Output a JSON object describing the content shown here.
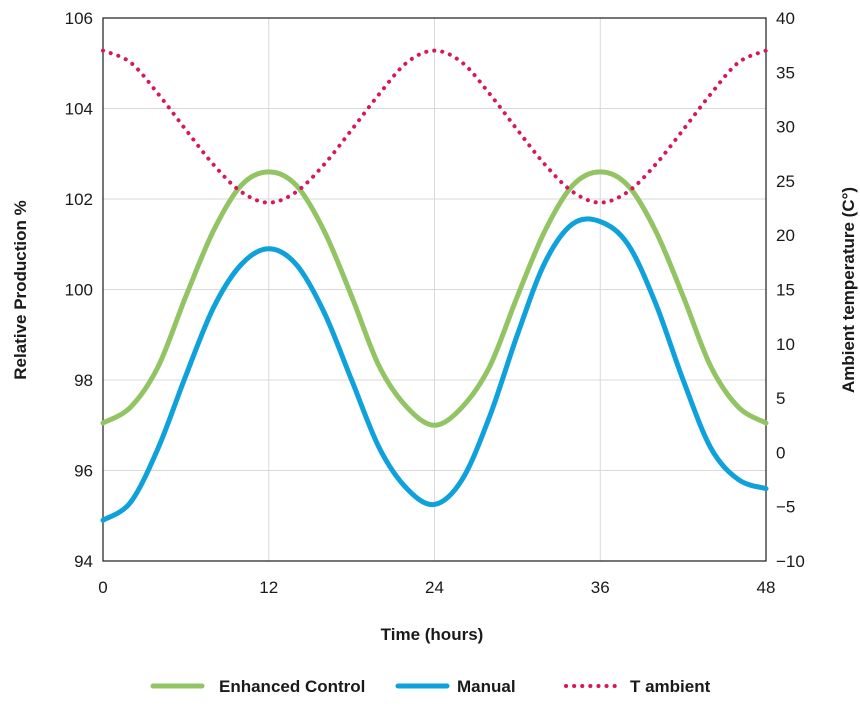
{
  "chart_data": {
    "type": "line",
    "xlabel": "Time (hours)",
    "ylabel": "Relative Production %",
    "y2label": "Ambient temperature (C°)",
    "xlim": [
      0,
      48
    ],
    "ylim": [
      94,
      106
    ],
    "y2lim": [
      -10,
      40
    ],
    "x_ticks": [
      "0",
      "12",
      "24",
      "36",
      "48"
    ],
    "y_ticks": [
      "94",
      "96",
      "98",
      "100",
      "102",
      "104",
      "106"
    ],
    "y2_ticks": [
      "−10",
      "−5",
      "0",
      "5",
      "10",
      "15",
      "20",
      "25",
      "30",
      "35",
      "40"
    ],
    "grid": true,
    "legend_position": "bottom",
    "x": [
      0,
      2,
      4,
      6,
      8,
      10,
      12,
      14,
      16,
      18,
      20,
      22,
      24,
      26,
      28,
      30,
      32,
      34,
      36,
      38,
      40,
      42,
      44,
      46,
      48
    ],
    "series": [
      {
        "name": "Enhanced Control",
        "axis": "left",
        "color": "#92c464",
        "style": "solid",
        "values": [
          97.05,
          97.4,
          98.3,
          99.85,
          101.3,
          102.3,
          102.6,
          102.3,
          101.3,
          99.85,
          98.3,
          97.4,
          97.0,
          97.4,
          98.3,
          99.85,
          101.3,
          102.3,
          102.6,
          102.3,
          101.3,
          99.85,
          98.3,
          97.4,
          97.05
        ]
      },
      {
        "name": "Manual",
        "axis": "left",
        "color": "#0ea1db",
        "style": "solid",
        "values": [
          94.9,
          95.3,
          96.5,
          98.1,
          99.6,
          100.55,
          100.9,
          100.55,
          99.5,
          98.0,
          96.5,
          95.6,
          95.25,
          95.8,
          97.2,
          99.0,
          100.6,
          101.45,
          101.5,
          101.0,
          99.7,
          98.0,
          96.5,
          95.8,
          95.6
        ]
      },
      {
        "name": "T ambient",
        "axis": "right",
        "color": "#d6175e",
        "style": "dotted",
        "values": [
          37,
          35.9,
          33,
          29.7,
          26.5,
          24,
          23,
          24,
          26.5,
          29.7,
          33,
          35.9,
          37,
          35.9,
          33,
          29.7,
          26.5,
          24,
          23,
          24,
          26.5,
          29.7,
          33,
          35.9,
          37
        ]
      }
    ]
  }
}
